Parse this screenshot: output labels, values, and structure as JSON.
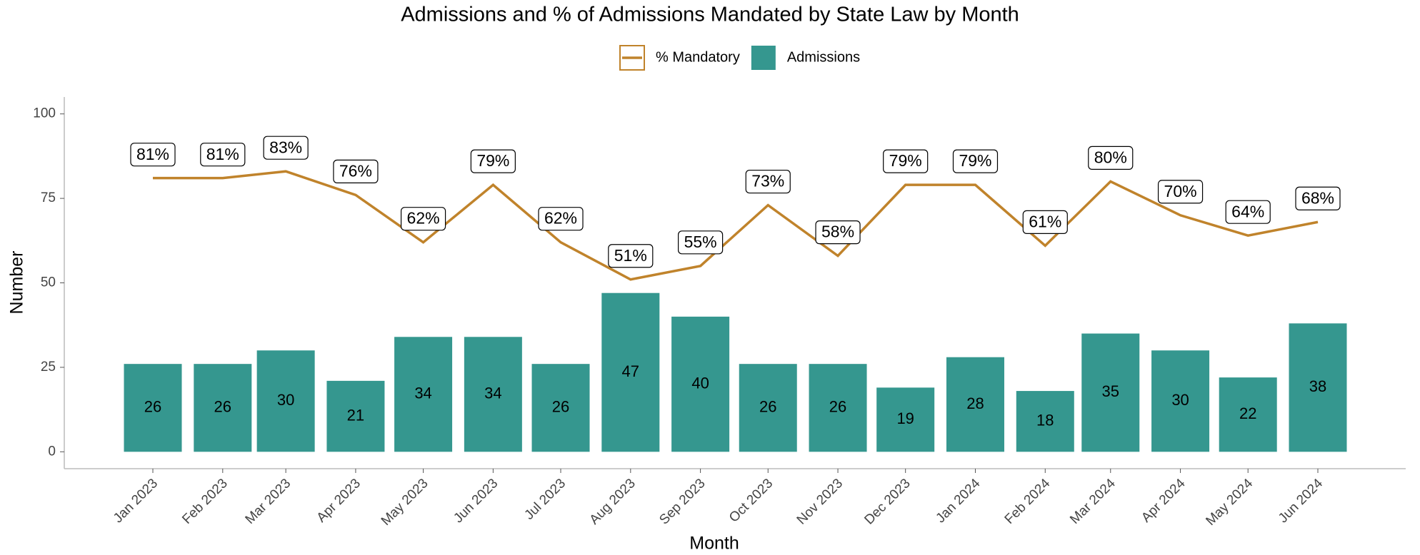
{
  "chart_data": {
    "type": "bar-line",
    "title": "Admissions and % of Admissions Mandated by State Law by Month",
    "xlabel": "Month",
    "ylabel": "Number",
    "categories": [
      "Jan 2023",
      "Feb 2023",
      "Mar 2023",
      "Apr 2023",
      "May 2023",
      "Jun 2023",
      "Jul 2023",
      "Aug 2023",
      "Sep 2023",
      "Oct 2023",
      "Nov 2023",
      "Dec 2023",
      "Jan 2024",
      "Feb 2024",
      "Mar 2024",
      "Apr 2024",
      "May 2024",
      "Jun 2024"
    ],
    "series": [
      {
        "name": "% Mandatory",
        "type": "line",
        "color": "#c0832b",
        "values": [
          81,
          81,
          83,
          76,
          62,
          79,
          62,
          51,
          55,
          73,
          58,
          79,
          79,
          61,
          80,
          70,
          64,
          68
        ],
        "value_labels": [
          "81%",
          "81%",
          "83%",
          "76%",
          "62%",
          "79%",
          "62%",
          "51%",
          "55%",
          "73%",
          "58%",
          "79%",
          "79%",
          "61%",
          "80%",
          "70%",
          "64%",
          "68%"
        ]
      },
      {
        "name": "Admissions",
        "type": "bar",
        "color": "#35978f",
        "values": [
          26,
          26,
          30,
          21,
          34,
          34,
          26,
          47,
          40,
          26,
          26,
          19,
          28,
          18,
          35,
          30,
          22,
          38
        ]
      }
    ],
    "ylim": [
      -5,
      105
    ],
    "yticks": [
      0,
      25,
      50,
      75,
      100
    ],
    "grid": false,
    "legend": "top"
  }
}
